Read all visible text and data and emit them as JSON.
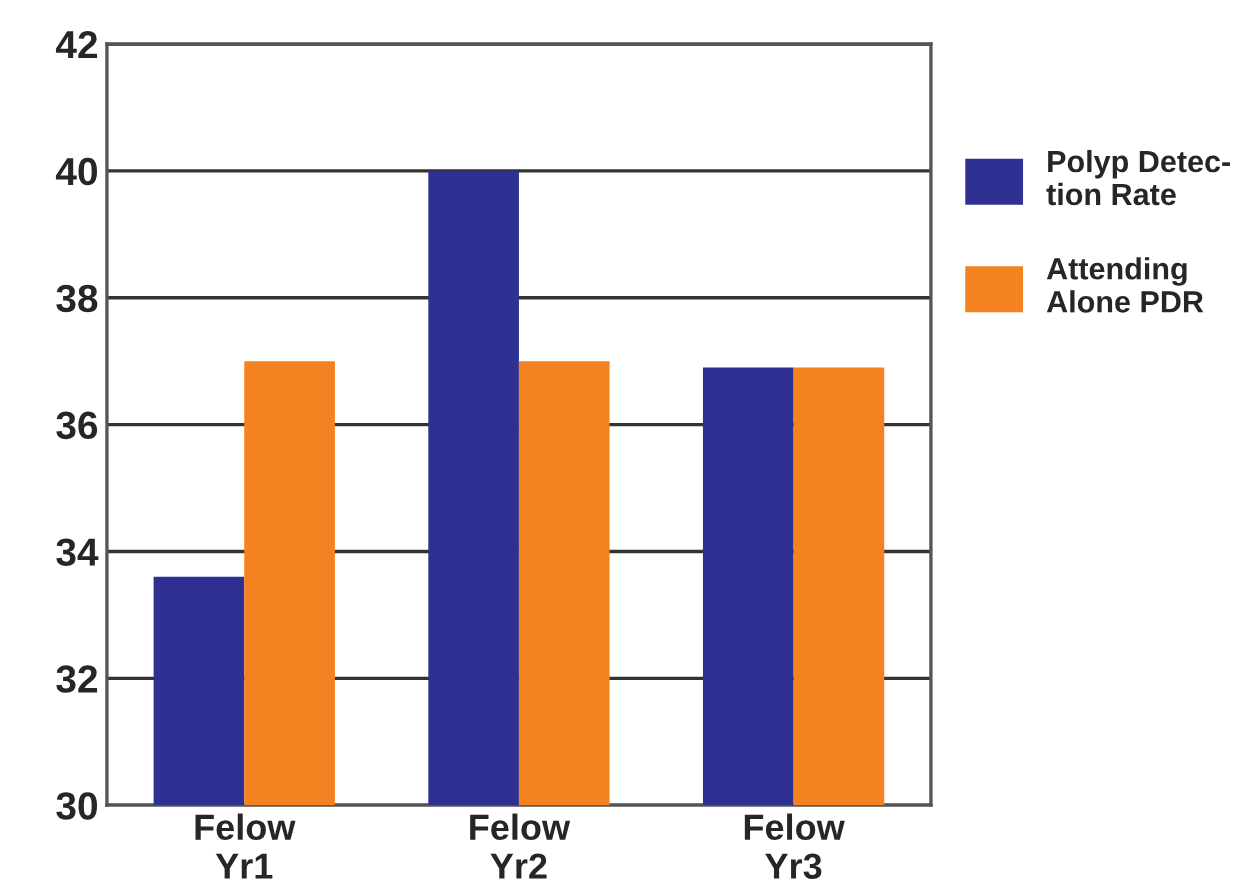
{
  "chart_data": {
    "type": "bar",
    "categories": [
      "Felow\nYr1",
      "Felow\nYr2",
      "Felow\nYr3"
    ],
    "series": [
      {
        "name": "Polyp Detec-\ntion Rate",
        "color": "#2e3192",
        "values": [
          33.6,
          40.0,
          36.9
        ]
      },
      {
        "name": "Attending\nAlone PDR",
        "color": "#f48221",
        "values": [
          37.0,
          37.0,
          36.9
        ]
      }
    ],
    "ylim": [
      30,
      42
    ],
    "yticks": [
      30,
      32,
      34,
      36,
      38,
      40,
      42
    ],
    "grid": "y",
    "legend": "right"
  }
}
